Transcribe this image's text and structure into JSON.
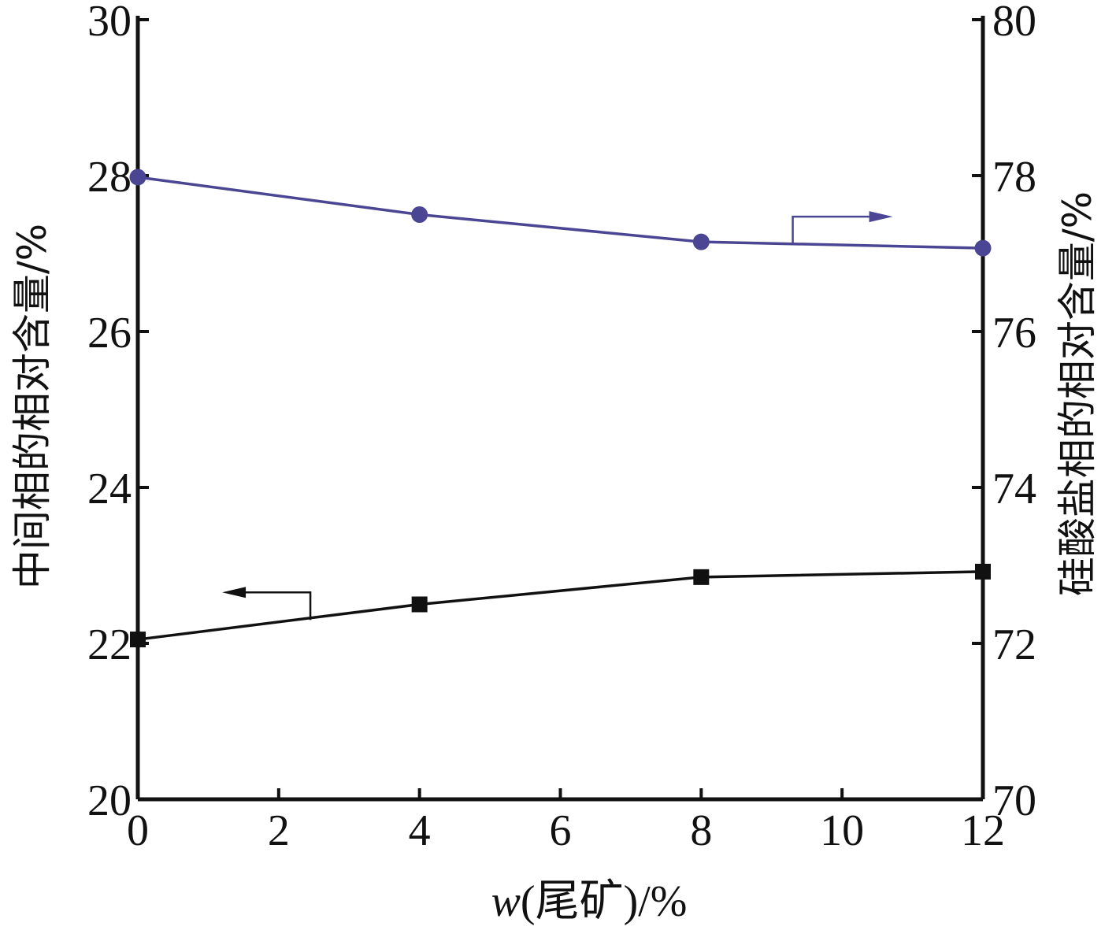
{
  "chart_data": {
    "type": "line",
    "title": "",
    "xlabel": {
      "var": "w",
      "rest": "(尾矿)/%"
    },
    "ylabel_left": "中间相的相对含量/%",
    "ylabel_right": "硅酸盐相的相对含量/%",
    "xlim": [
      0,
      12
    ],
    "ylim_left": [
      20,
      30
    ],
    "ylim_right": [
      70,
      80
    ],
    "x_ticks": [
      "0",
      "2",
      "4",
      "6",
      "8",
      "10",
      "12"
    ],
    "y_left_ticks": [
      "20",
      "22",
      "24",
      "26",
      "28",
      "30"
    ],
    "y_right_ticks": [
      "70",
      "72",
      "74",
      "76",
      "78",
      "80"
    ],
    "grid": false,
    "series": [
      {
        "name": "中间相",
        "axis": "left",
        "marker": "square",
        "color": "#111111",
        "x": [
          0,
          4,
          8,
          12
        ],
        "values": [
          22.05,
          22.5,
          22.85,
          22.92
        ],
        "indicator": {
          "direction": "left",
          "at_x": 2.45,
          "at_y": 22.3
        }
      },
      {
        "name": "硅酸盐相",
        "axis": "right",
        "marker": "circle",
        "color": "#4b4694",
        "x": [
          0,
          4,
          8,
          12
        ],
        "values": [
          77.98,
          77.5,
          77.15,
          77.07
        ],
        "indicator": {
          "direction": "right",
          "at_x": 9.3,
          "at_y": 77.12
        }
      }
    ]
  }
}
